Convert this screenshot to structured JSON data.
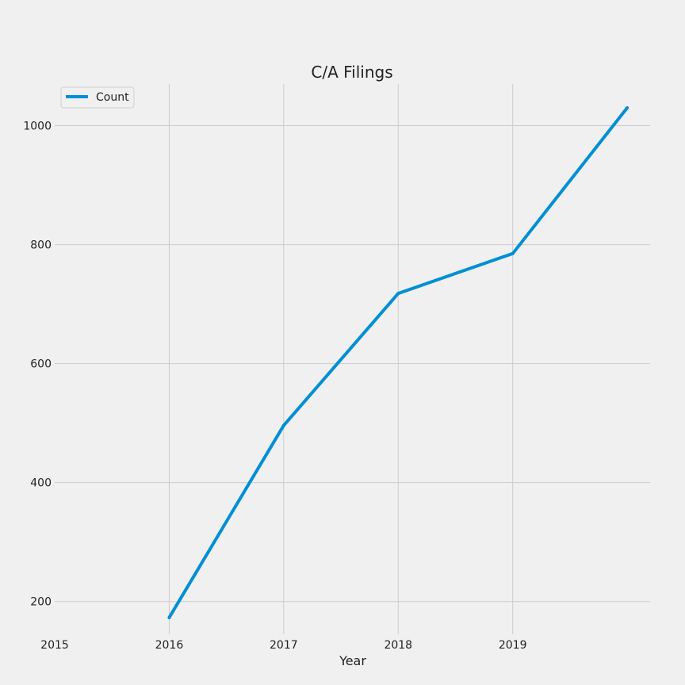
{
  "chart_data": {
    "type": "line",
    "title": "C/A Filings",
    "xlabel": "Year",
    "ylabel": "",
    "x_ticks": [
      2015,
      2016,
      2017,
      2018,
      2019
    ],
    "y_ticks": [
      200,
      400,
      600,
      800,
      1000
    ],
    "xlim": [
      2015,
      2020.2
    ],
    "ylim": [
      145,
      1070
    ],
    "grid": true,
    "legend_position": "top-left",
    "series": [
      {
        "name": "Count",
        "color": "#008fd5",
        "x": [
          2016,
          2017,
          2018,
          2019,
          2020
        ],
        "y": [
          173,
          496,
          718,
          785,
          1030
        ]
      }
    ]
  }
}
